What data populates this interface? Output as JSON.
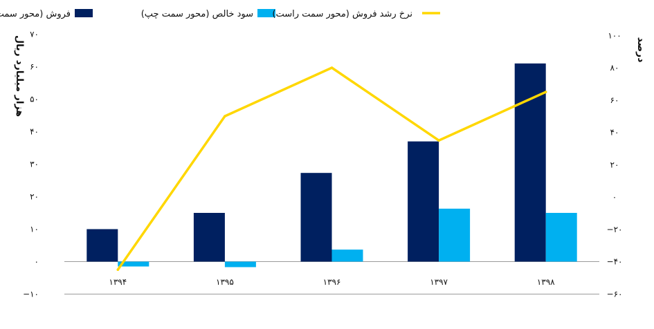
{
  "chart_data": {
    "type": "bar",
    "categories": [
      "۱۳۹۴",
      "۱۳۹۵",
      "۱۳۹۶",
      "۱۳۹۷",
      "۱۳۹۸"
    ],
    "series": [
      {
        "name": "فروش (محور سمت چپ)",
        "kind": "bar",
        "axis": "left",
        "color": "#002060",
        "values": [
          10,
          15,
          27.3,
          37,
          61
        ]
      },
      {
        "name": "سود خالص (محور سمت چپ)",
        "kind": "bar",
        "axis": "left",
        "color": "#00B0F0",
        "values": [
          -1.5,
          -1.7,
          3.7,
          16.3,
          15
        ]
      },
      {
        "name": "نرخ رشد فروش (محور سمت راست)",
        "kind": "line",
        "axis": "right",
        "color": "#FFD700",
        "values": [
          -45,
          50,
          80,
          35,
          65
        ]
      }
    ],
    "y_left": {
      "label": "هزار میلیارد ریال",
      "ylim": [
        -10,
        70
      ],
      "ticks": [
        "−۱۰",
        "۰",
        "۱۰",
        "۲۰",
        "۳۰",
        "۴۰",
        "۵۰",
        "۶۰",
        "۷۰"
      ]
    },
    "y_right": {
      "label": "درصد",
      "ylim": [
        -60,
        100
      ],
      "ticks": [
        "−۶۰",
        "−۴۰",
        "−۲۰",
        "۰",
        "۲۰",
        "۴۰",
        "۶۰",
        "۸۰",
        "۱۰۰"
      ]
    },
    "grid": false,
    "legend_position": "top"
  }
}
